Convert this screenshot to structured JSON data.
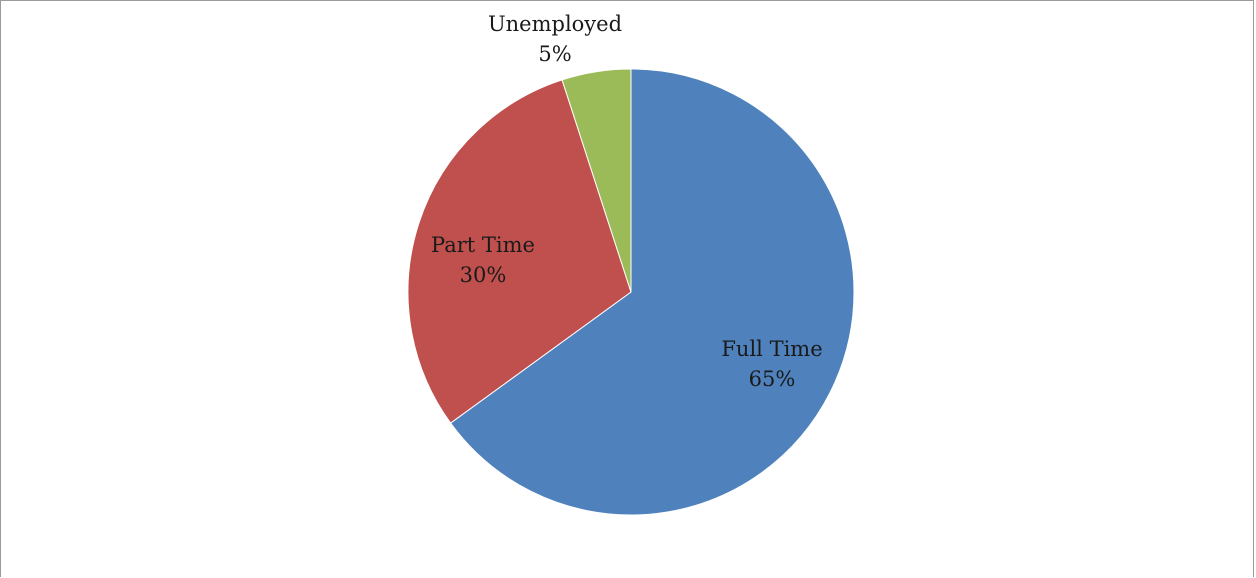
{
  "chart_data": {
    "type": "pie",
    "title": "",
    "categories": [
      "Full Time",
      "Part Time",
      "Unemployed"
    ],
    "values": [
      65,
      30,
      5
    ],
    "labels": [
      {
        "name": "Full Time",
        "percent_text": "65%"
      },
      {
        "name": "Part Time",
        "percent_text": "30%"
      },
      {
        "name": "Unemployed",
        "percent_text": "5%"
      }
    ],
    "colors": [
      "#4F81BD",
      "#C0504D",
      "#9BBB59"
    ],
    "start_angle_deg": 0,
    "direction": "clockwise",
    "legend": "none"
  }
}
